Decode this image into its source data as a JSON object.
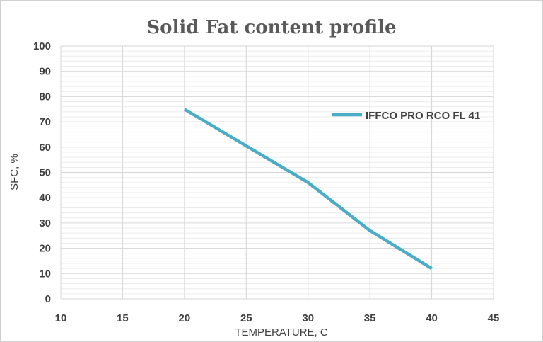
{
  "chart_data": {
    "type": "line",
    "title": "Solid Fat content profile",
    "xlabel": "TEMPERATURE, C",
    "ylabel": "SFC, %",
    "xlim": [
      10,
      45
    ],
    "ylim": [
      0,
      100
    ],
    "x_ticks": [
      10,
      15,
      20,
      25,
      30,
      35,
      40,
      45
    ],
    "y_ticks": [
      0,
      10,
      20,
      30,
      40,
      50,
      60,
      70,
      80,
      90,
      100
    ],
    "grid": true,
    "legend_position": "right",
    "series": [
      {
        "name": "IFFCO PRO RCO FL 41",
        "color": "#4bacc6",
        "x": [
          20,
          25,
          30,
          35,
          40
        ],
        "y": [
          75,
          60.5,
          46,
          27,
          12
        ]
      }
    ]
  }
}
